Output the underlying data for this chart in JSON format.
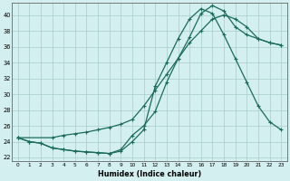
{
  "xlabel": "Humidex (Indice chaleur)",
  "background_color": "#d4efef",
  "grid_color": "#a8cccc",
  "line_color": "#1a6b5a",
  "xlim": [
    -0.5,
    23.5
  ],
  "ylim": [
    21.5,
    41.5
  ],
  "xticks": [
    0,
    1,
    2,
    3,
    4,
    5,
    6,
    7,
    8,
    9,
    10,
    11,
    12,
    13,
    14,
    15,
    16,
    17,
    18,
    19,
    20,
    21,
    22,
    23
  ],
  "yticks": [
    22,
    24,
    26,
    28,
    30,
    32,
    34,
    36,
    38,
    40
  ],
  "line1_x": [
    0,
    1,
    2,
    3,
    4,
    5,
    6,
    7,
    8,
    9,
    10,
    11,
    12,
    13,
    14,
    15,
    16,
    17,
    18,
    19,
    20,
    21,
    22,
    23
  ],
  "line1_y": [
    24.5,
    24.0,
    23.8,
    23.2,
    23.0,
    22.8,
    22.7,
    22.6,
    22.5,
    23.0,
    24.8,
    26.0,
    27.8,
    31.5,
    34.5,
    37.2,
    40.2,
    41.2,
    40.5,
    38.5,
    37.5,
    37.0,
    36.5,
    36.2
  ],
  "line2_x": [
    0,
    1,
    2,
    3,
    4,
    5,
    6,
    7,
    8,
    9,
    10,
    11,
    12,
    13,
    14,
    15,
    16,
    17,
    18,
    19,
    20,
    21,
    22,
    23
  ],
  "line2_y": [
    24.5,
    24.0,
    23.8,
    23.2,
    23.0,
    22.8,
    22.7,
    22.6,
    22.5,
    22.8,
    24.0,
    25.5,
    31.0,
    34.0,
    37.0,
    39.5,
    40.8,
    40.2,
    37.5,
    34.5,
    31.5,
    28.5,
    26.5,
    25.5
  ],
  "line3_x": [
    0,
    3,
    4,
    5,
    6,
    7,
    8,
    9,
    10,
    11,
    12,
    13,
    14,
    15,
    16,
    17,
    18,
    19,
    20,
    21,
    22,
    23
  ],
  "line3_y": [
    24.5,
    24.5,
    24.8,
    25.0,
    25.2,
    25.5,
    25.8,
    26.2,
    26.8,
    28.5,
    30.5,
    32.5,
    34.5,
    36.5,
    38.0,
    39.5,
    40.0,
    39.5,
    38.5,
    37.0,
    36.5,
    36.2
  ]
}
